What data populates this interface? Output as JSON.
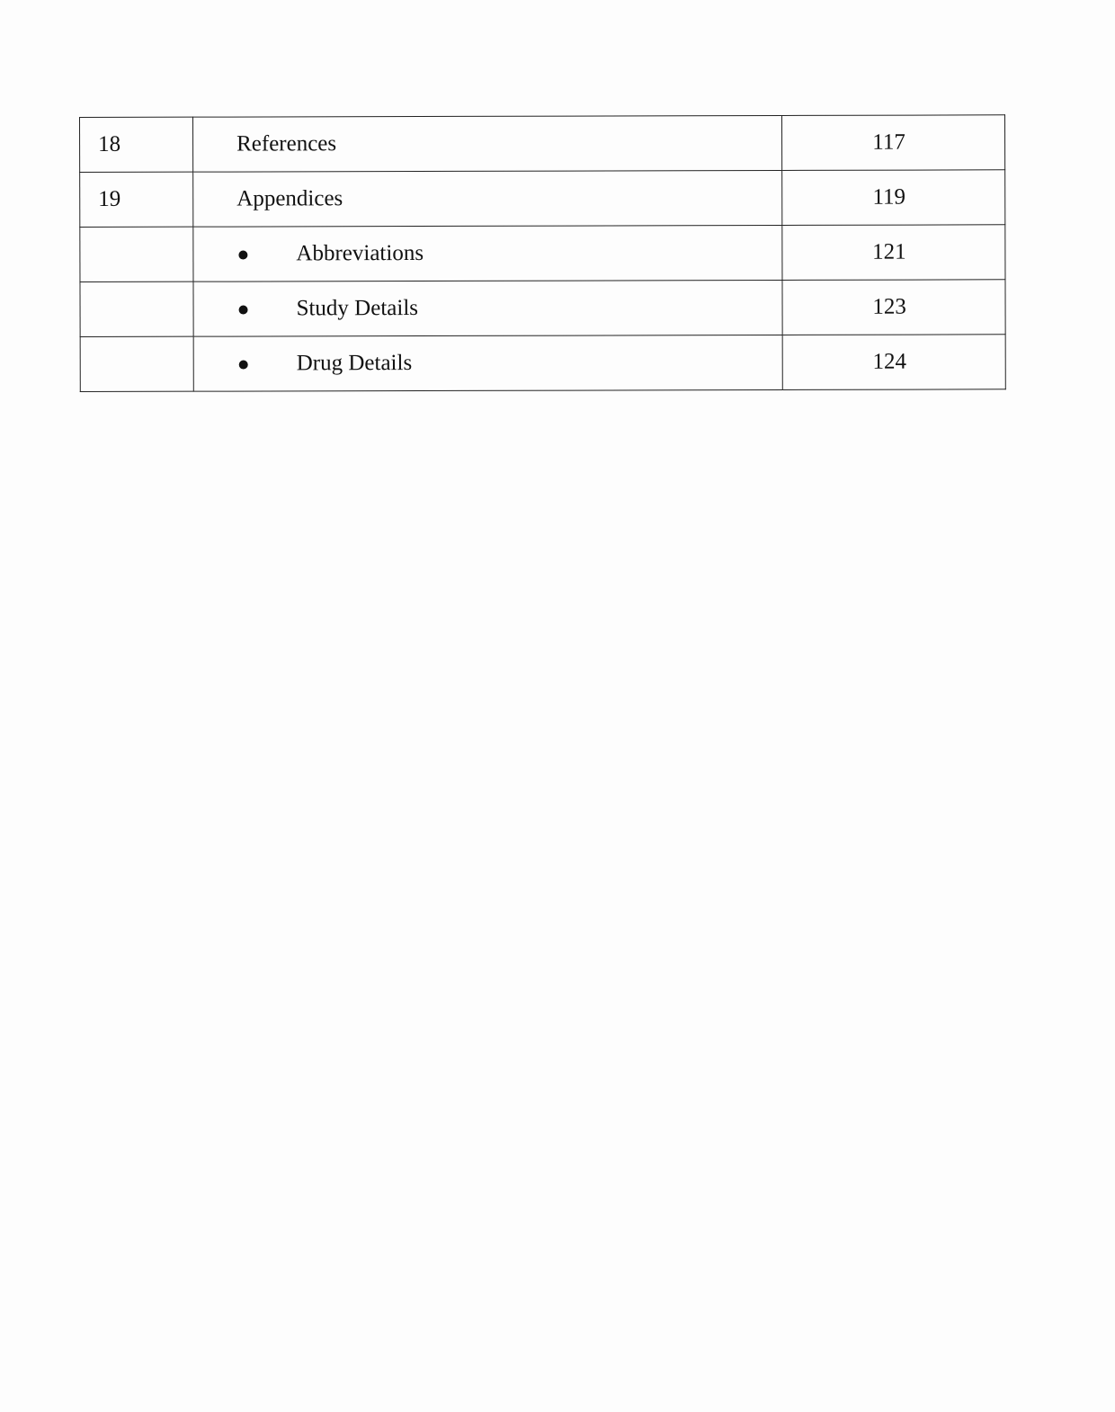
{
  "toc": {
    "rows": [
      {
        "number": "18",
        "title": "References",
        "page": "117",
        "bullet": false
      },
      {
        "number": "19",
        "title": "Appendices",
        "page": "119",
        "bullet": false
      },
      {
        "number": "",
        "title": "Abbreviations",
        "page": "121",
        "bullet": true
      },
      {
        "number": "",
        "title": "Study Details",
        "page": "123",
        "bullet": true
      },
      {
        "number": "",
        "title": "Drug Details",
        "page": "124",
        "bullet": true
      }
    ]
  }
}
